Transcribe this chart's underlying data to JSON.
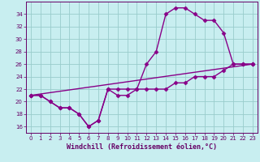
{
  "xlabel": "Windchill (Refroidissement éolien,°C)",
  "bg_color": "#c8eef0",
  "line_color": "#880088",
  "grid_color": "#99cccc",
  "line1_x": [
    0,
    1,
    2,
    3,
    4,
    5,
    6,
    7,
    8,
    9,
    10,
    11,
    12,
    13,
    14,
    15,
    16,
    17,
    18,
    19,
    20,
    21,
    22,
    23
  ],
  "line1_y": [
    21,
    21,
    20,
    19,
    19,
    18,
    16,
    17,
    22,
    21,
    21,
    22,
    26,
    28,
    34,
    35,
    35,
    34,
    33,
    33,
    31,
    26,
    26,
    26
  ],
  "line2_x": [
    0,
    1,
    2,
    3,
    4,
    5,
    6,
    7,
    8,
    9,
    10,
    11,
    12,
    13,
    14,
    15,
    16,
    17,
    18,
    19,
    20,
    21,
    22,
    23
  ],
  "line2_y": [
    21,
    21,
    20,
    19,
    19,
    18,
    16,
    17,
    22,
    22,
    22,
    22,
    22,
    22,
    22,
    23,
    23,
    24,
    24,
    24,
    25,
    26,
    26,
    26
  ],
  "line3_x": [
    0,
    23
  ],
  "line3_y": [
    21,
    26
  ],
  "xlim": [
    -0.5,
    23.5
  ],
  "ylim": [
    15,
    36
  ],
  "yticks": [
    16,
    18,
    20,
    22,
    24,
    26,
    28,
    30,
    32,
    34
  ],
  "xticks": [
    0,
    1,
    2,
    3,
    4,
    5,
    6,
    7,
    8,
    9,
    10,
    11,
    12,
    13,
    14,
    15,
    16,
    17,
    18,
    19,
    20,
    21,
    22,
    23
  ],
  "marker": "D",
  "markersize": 2.5,
  "linewidth": 1.0,
  "tick_fontsize": 5.0,
  "xlabel_fontsize": 6.0
}
